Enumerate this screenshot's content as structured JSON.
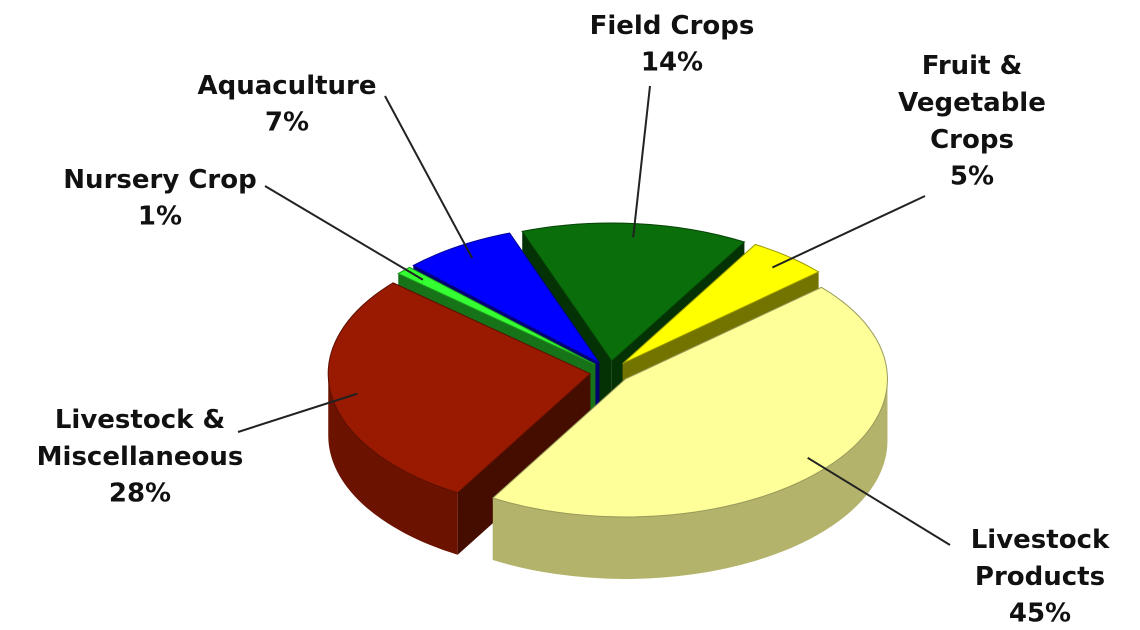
{
  "chart_data": {
    "type": "pie3d",
    "categories": [
      "Field Crops",
      "Fruit & Vegetable Crops",
      "Livestock Products",
      "Livestock & Miscellaneous",
      "Nursery Crop",
      "Aquaculture"
    ],
    "values": [
      14,
      5,
      45,
      28,
      1,
      7
    ],
    "value_labels": [
      "14%",
      "5%",
      "45%",
      "28%",
      "1%",
      "7%"
    ],
    "colors": [
      "#0a6e0a",
      "#ffff00",
      "#ffff99",
      "#991a00",
      "#33ff33",
      "#0000ff"
    ]
  }
}
